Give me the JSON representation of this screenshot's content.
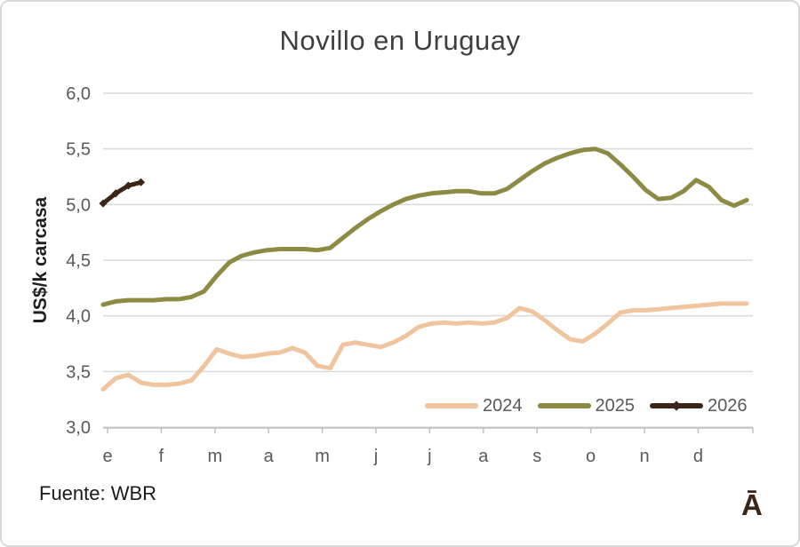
{
  "title": "Novillo en Uruguay",
  "y_axis_title": "US$/k carcasa",
  "source": "Fuente: WBR",
  "logo": "Ā",
  "colors": {
    "series_2024": "#f0c59e",
    "series_2025": "#8c8a43",
    "series_2026": "#3b2516",
    "gridline": "#d9d9d9",
    "axis_line": "#bfbfbf",
    "tick_text": "#595959",
    "title_text": "#3f3f3f"
  },
  "legend": [
    {
      "label": "2024",
      "color": "#f0c59e",
      "marker": false
    },
    {
      "label": "2025",
      "color": "#8c8a43",
      "marker": false
    },
    {
      "label": "2026",
      "color": "#3b2516",
      "marker": true
    }
  ],
  "chart_data": {
    "type": "line",
    "title": "Novillo en Uruguay",
    "ylabel": "US$/k carcasa",
    "ylim": [
      3.0,
      6.0
    ],
    "grid": true,
    "legend_position": "inside-bottom-right",
    "x_description": "weekly points, January through December (month initials on axis)",
    "x_labels": [
      "e",
      "f",
      "m",
      "a",
      "m",
      "j",
      "j",
      "a",
      "s",
      "o",
      "n",
      "d"
    ],
    "y_ticks": [
      {
        "value": 6.0,
        "label": "6,0"
      },
      {
        "value": 5.5,
        "label": "5,5"
      },
      {
        "value": 5.0,
        "label": "5,0"
      },
      {
        "value": 4.5,
        "label": "4,5"
      },
      {
        "value": 4.0,
        "label": "4,0"
      },
      {
        "value": 3.5,
        "label": "3,5"
      },
      {
        "value": 3.0,
        "label": "3,0"
      }
    ],
    "series": [
      {
        "name": "2024",
        "color": "#f0c59e",
        "marker": false,
        "values": [
          3.34,
          3.44,
          3.47,
          3.4,
          3.38,
          3.38,
          3.39,
          3.42,
          3.55,
          3.7,
          3.66,
          3.63,
          3.64,
          3.66,
          3.67,
          3.71,
          3.67,
          3.55,
          3.53,
          3.74,
          3.76,
          3.74,
          3.72,
          3.76,
          3.82,
          3.9,
          3.93,
          3.94,
          3.93,
          3.94,
          3.93,
          3.94,
          3.98,
          4.07,
          4.04,
          3.96,
          3.87,
          3.79,
          3.77,
          3.84,
          3.93,
          4.03,
          4.05,
          4.05,
          4.06,
          4.07,
          4.08,
          4.09,
          4.1,
          4.11,
          4.11,
          4.11
        ]
      },
      {
        "name": "2025",
        "color": "#8c8a43",
        "marker": false,
        "values": [
          4.1,
          4.13,
          4.14,
          4.14,
          4.14,
          4.15,
          4.15,
          4.17,
          4.22,
          4.36,
          4.48,
          4.54,
          4.57,
          4.59,
          4.6,
          4.6,
          4.6,
          4.59,
          4.61,
          4.7,
          4.79,
          4.87,
          4.94,
          5.0,
          5.05,
          5.08,
          5.1,
          5.11,
          5.12,
          5.12,
          5.1,
          5.1,
          5.14,
          5.22,
          5.3,
          5.37,
          5.42,
          5.46,
          5.49,
          5.5,
          5.46,
          5.36,
          5.25,
          5.13,
          5.05,
          5.06,
          5.12,
          5.22,
          5.16,
          5.04,
          4.99,
          5.04
        ]
      },
      {
        "name": "2026",
        "color": "#3b2516",
        "marker": true,
        "values": [
          5.01,
          5.1,
          5.17,
          5.2
        ]
      }
    ]
  }
}
